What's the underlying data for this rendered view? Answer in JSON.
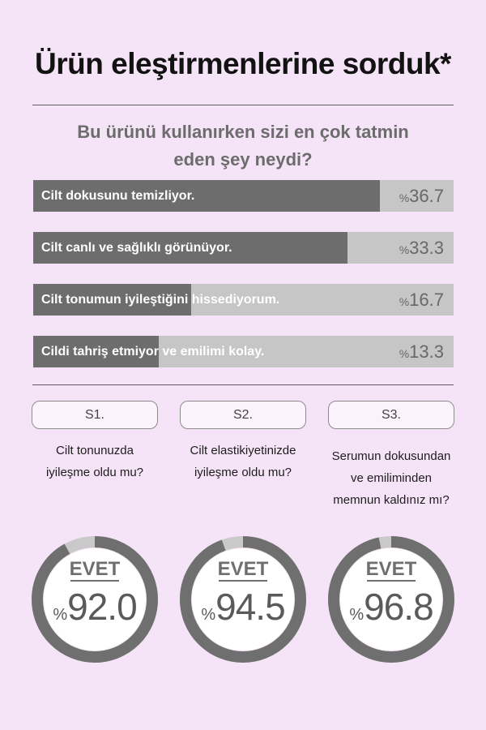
{
  "header": {
    "title": "Ürün eleştirmenlerine sorduk*"
  },
  "chart_data": [
    {
      "type": "bar",
      "title": "Bu ürünü kullanırken sizi en çok tatmin eden şey neydi?",
      "title_lines": [
        "Bu ürünü kullanırken sizi en çok tatmin",
        "eden şey neydi?"
      ],
      "categories": [
        "Cilt dokusunu temizliyor.",
        "Cilt canlı ve sağlıklı görünüyor.",
        "Cilt tonumun iyileştiğini hissediyorum.",
        "Cildi tahriş etmiyor ve emilimi kolay."
      ],
      "values": [
        36.7,
        33.3,
        16.7,
        13.3
      ],
      "value_prefix": "%",
      "fill_scale_max": 44.5,
      "colors": {
        "fill": "#6d6d6d",
        "track": "#c6c6c6"
      }
    },
    {
      "type": "pie",
      "style": "donut",
      "items": [
        {
          "chip": "S1.",
          "question_lines": [
            "Cilt tonunuzda",
            "iyileşme oldu mu?"
          ],
          "answer": "EVET",
          "value": 92.0,
          "value_text": "92.0"
        },
        {
          "chip": "S2.",
          "question_lines": [
            "Cilt elastikiyetinizde",
            "iyileşme oldu mu?"
          ],
          "answer": "EVET",
          "value": 94.5,
          "value_text": "94.5"
        },
        {
          "chip": "S3.",
          "question_lines": [
            "Serumun dokusundan",
            "ve emiliminden",
            "memnun kaldınız mı?"
          ],
          "answer": "EVET",
          "value": 96.8,
          "value_text": "96.8"
        }
      ],
      "value_prefix": "%",
      "colors": {
        "ring": "#6f6f6f",
        "rest": "#c9c9c9",
        "inner": "#ffffff"
      }
    }
  ]
}
